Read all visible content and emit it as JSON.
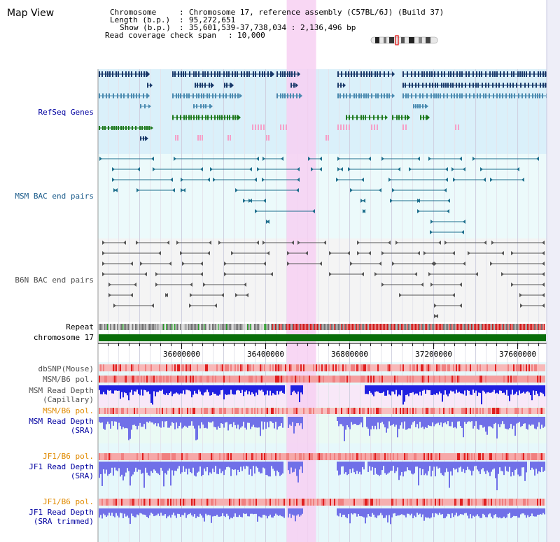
{
  "page": {
    "title": "Map View"
  },
  "info": {
    "chromosome_key": "Chromosome",
    "chromosome_val": "Chromosome 17, reference assembly (C57BL/6J) (Build 37)",
    "length_key": "Length (b.p.)",
    "length_val": "95,272,651",
    "show_key": "Show (b.p.)",
    "show_val": "35,601,539-37,738,034 : 2,136,496 bp",
    "coverage_key": "Read coverage check span",
    "coverage_val": "10,000"
  },
  "tracks": {
    "refseq": "RefSeq Genes",
    "msm_bac": "MSM BAC end pairs",
    "b6n_bac": "B6N BAC end pairs",
    "repeat": "Repeat",
    "chromosome": "chromosome 17",
    "dbsnp": "dbSNP(Mouse)",
    "msm_b6_pol_1": "MSM/B6 pol.",
    "msm_depth_cap_1": "MSM Read Depth",
    "msm_depth_cap_2": "(Capillary)",
    "msm_b6_pol_2": "MSM/B6 pol.",
    "msm_depth_sra_1": "MSM Read Depth",
    "msm_depth_sra_2": "(SRA)",
    "jf1_b6_pol_1": "JF1/B6 pol.",
    "jf1_depth_sra_1": "JF1 Read Depth",
    "jf1_depth_sra_2": "(SRA)",
    "jf1_b6_pol_2": "JF1/B6 pol.",
    "jf1_depth_trim_1": "JF1 Read Depth",
    "jf1_depth_trim_2": "(SRA trimmed)"
  },
  "axis": {
    "start": 35601539,
    "end": 37738034,
    "ticks": [
      "36000000",
      "36400000",
      "36800000",
      "37200000",
      "37600000"
    ],
    "tick_values": [
      36000000,
      36400000,
      36800000,
      37200000,
      37600000
    ]
  },
  "highlight": {
    "start": 36500000,
    "end": 36640000
  },
  "colors": {
    "gene_dark": "#1a3a6b",
    "gene_mid": "#4a8ab0",
    "gene_green": "#1e7a1e",
    "gene_pink": "#f5a0c8",
    "bac_msm": "#1d6e8c",
    "bac_b6n": "#555555",
    "chromosome": "#0a6e0a",
    "depth_blue": "#2020e0",
    "depth_light": "#7070e8",
    "label_blue": "#0000a0",
    "label_orange": "#e08a00",
    "label_gray": "#505050",
    "highlight": "#f7d0f2"
  }
}
